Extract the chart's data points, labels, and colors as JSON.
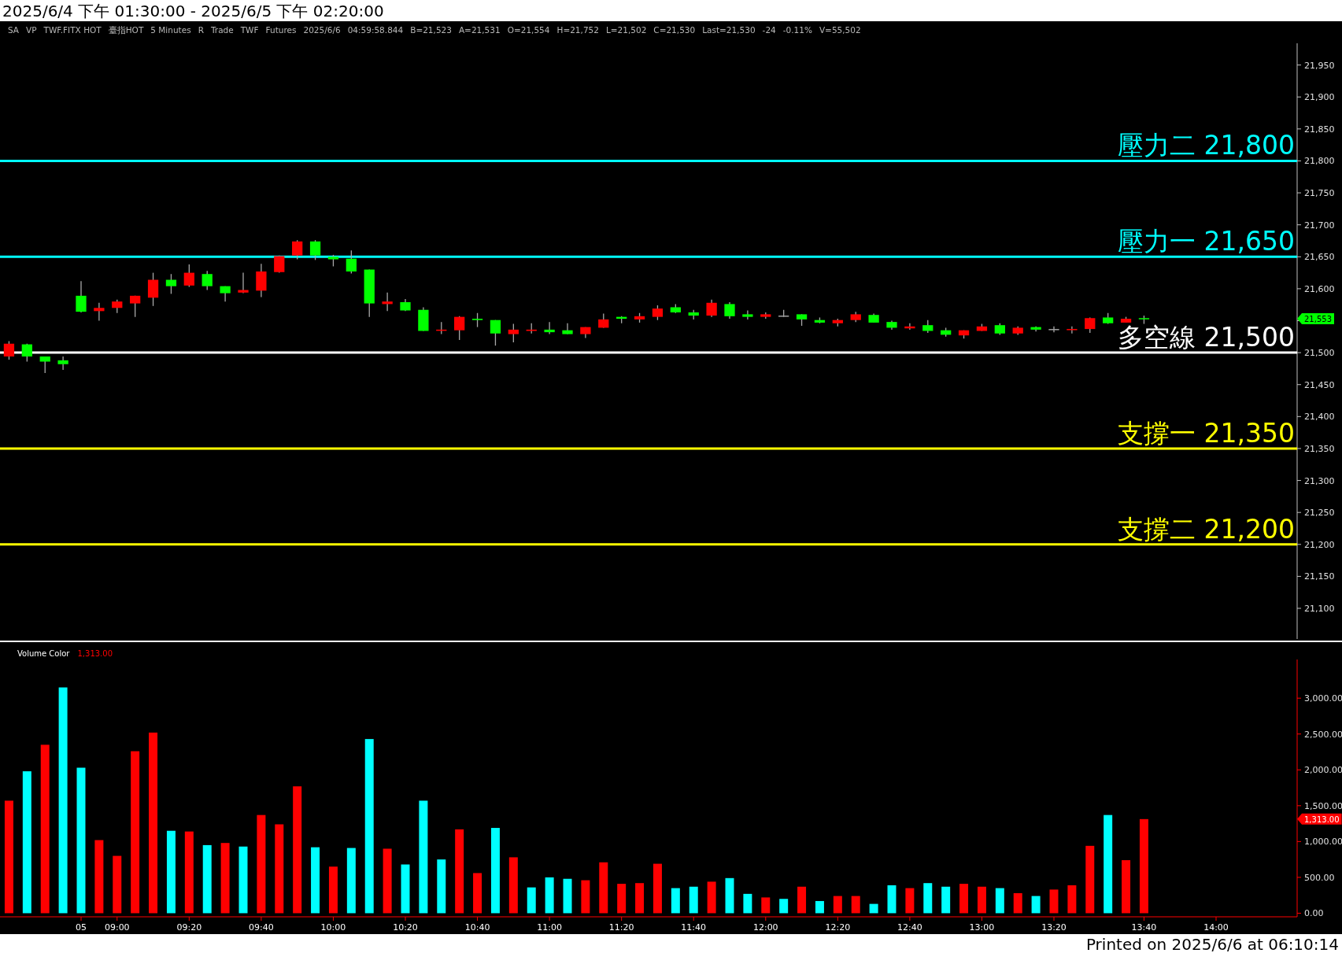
{
  "chart_data": [
    {
      "type": "candlestick",
      "title": "2025/6/4 下午 01:30:00 - 2025/6/5 下午 02:20:00",
      "annotations": [
        "SA",
        "VP",
        "TWF.FITX HOT",
        "臺指HOT",
        "5 Minutes",
        "R",
        "Trade",
        "TWF",
        "Futures",
        "2025/6/6",
        "04:59:58.844",
        "B=21,523",
        "A=21,531",
        "O=21,554",
        "H=21,752",
        "L=21,502",
        "C=21,530",
        "Last=21,530",
        "-24",
        "-0.11%",
        "V=55,502",
        "21,553"
      ],
      "categories": [
        null,
        null,
        null,
        null,
        null,
        null,
        null,
        null,
        null,
        null,
        null,
        null,
        null,
        null,
        null,
        null,
        null,
        null,
        null,
        null,
        null,
        null,
        null,
        null,
        null,
        null,
        null,
        null,
        null,
        null,
        null,
        null,
        null,
        null,
        null,
        null,
        null,
        null,
        null,
        null,
        null,
        null,
        null,
        null,
        null,
        null,
        null,
        null,
        null,
        null,
        null,
        null,
        null,
        null,
        null,
        null,
        null,
        null,
        null,
        null,
        null,
        null,
        null,
        null,
        null,
        null,
        null,
        null,
        null,
        null,
        null,
        null
      ],
      "ohlc": [
        [
          21494,
          21518,
          21489,
          21514
        ],
        [
          21513,
          21514,
          21486,
          21494
        ],
        [
          21494,
          21494,
          21468,
          21486
        ],
        [
          21488,
          21494,
          21473,
          21482
        ],
        [
          21589,
          21612,
          21563,
          21564
        ],
        [
          21565,
          21578,
          21550,
          21570
        ],
        [
          21570,
          21583,
          21562,
          21580
        ],
        [
          21577,
          21589,
          21556,
          21589
        ],
        [
          21586,
          21625,
          21573,
          21614
        ],
        [
          21614,
          21623,
          21592,
          21604
        ],
        [
          21605,
          21638,
          21603,
          21625
        ],
        [
          21623,
          21628,
          21598,
          21604
        ],
        [
          21604,
          21604,
          21580,
          21593
        ],
        [
          21594,
          21625,
          21593,
          21598
        ],
        [
          21597,
          21639,
          21587,
          21627
        ],
        [
          21626,
          21652,
          21625,
          21651
        ],
        [
          21652,
          21676,
          21646,
          21674
        ],
        [
          21674,
          21676,
          21645,
          21652
        ],
        [
          21650,
          21653,
          21635,
          21646
        ],
        [
          21647,
          21660,
          21624,
          21627
        ],
        [
          21630,
          21630,
          21556,
          21577
        ],
        [
          21576,
          21594,
          21565,
          21580
        ],
        [
          21579,
          21584,
          21565,
          21566
        ],
        [
          21567,
          21571,
          21534,
          21534
        ],
        [
          21535,
          21548,
          21529,
          21536
        ],
        [
          21535,
          21557,
          21520,
          21556
        ],
        [
          21553,
          21562,
          21540,
          21551
        ],
        [
          21551,
          21551,
          21511,
          21530
        ],
        [
          21529,
          21545,
          21516,
          21536
        ],
        [
          21534,
          21546,
          21530,
          21536
        ],
        [
          21536,
          21548,
          21529,
          21532
        ],
        [
          21535,
          21546,
          21529,
          21529
        ],
        [
          21529,
          21540,
          21523,
          21540
        ],
        [
          21539,
          21561,
          21539,
          21552
        ],
        [
          21556,
          21557,
          21546,
          21553
        ],
        [
          21552,
          21562,
          21547,
          21557
        ],
        [
          21556,
          21574,
          21551,
          21569
        ],
        [
          21571,
          21576,
          21562,
          21563
        ],
        [
          21563,
          21567,
          21552,
          21558
        ],
        [
          21558,
          21583,
          21556,
          21578
        ],
        [
          21576,
          21579,
          21553,
          21557
        ],
        [
          21560,
          21566,
          21552,
          21556
        ],
        [
          21556,
          21563,
          21553,
          21560
        ],
        [
          21558,
          21567,
          21556,
          21558
        ],
        [
          21560,
          21560,
          21542,
          21552
        ],
        [
          21551,
          21555,
          21546,
          21547
        ],
        [
          21546,
          21553,
          21541,
          21551
        ],
        [
          21551,
          21564,
          21548,
          21560
        ],
        [
          21559,
          21561,
          21547,
          21547
        ],
        [
          21548,
          21550,
          21536,
          21539
        ],
        [
          21538,
          21546,
          21536,
          21541
        ],
        [
          21543,
          21551,
          21531,
          21534
        ],
        [
          21535,
          21539,
          21525,
          21528
        ],
        [
          21527,
          21535,
          21522,
          21535
        ],
        [
          21534,
          21545,
          21534,
          21541
        ],
        [
          21543,
          21546,
          21528,
          21530
        ],
        [
          21530,
          21541,
          21528,
          21539
        ],
        [
          21540,
          21541,
          21533,
          21536
        ],
        [
          21537,
          21541,
          21532,
          21537
        ],
        [
          21536,
          21541,
          21530,
          21537
        ],
        [
          21537,
          21555,
          21531,
          21554
        ],
        [
          21555,
          21562,
          21545,
          21546
        ],
        [
          21547,
          21556,
          21547,
          21553
        ],
        [
          21554,
          21558,
          21545,
          21553
        ],
        null,
        null,
        null,
        null,
        null,
        null,
        null,
        null
      ],
      "colors": [
        "#ff0000",
        "#00ff00",
        "#00ff00",
        "#00ff00",
        "#00ff00",
        "#ff0000",
        "#ff0000",
        "#ff0000",
        "#ff0000",
        "#00ff00",
        "#ff0000",
        "#00ff00",
        "#00ff00",
        "#ff0000",
        "#ff0000",
        "#ff0000",
        "#ff0000",
        "#00ff00",
        "#00ff00",
        "#00ff00",
        "#00ff00",
        "#ff0000",
        "#00ff00",
        "#00ff00",
        "#ff0000",
        "#ff0000",
        "#00ff00",
        "#00ff00",
        "#ff0000",
        "#ff0000",
        "#00ff00",
        "#00ff00",
        "#ff0000",
        "#ff0000",
        "#00ff00",
        "#ff0000",
        "#ff0000",
        "#00ff00",
        "#00ff00",
        "#ff0000",
        "#00ff00",
        "#00ff00",
        "#ff0000",
        "#a0a0a0",
        "#00ff00",
        "#00ff00",
        "#ff0000",
        "#ff0000",
        "#00ff00",
        "#00ff00",
        "#ff0000",
        "#00ff00",
        "#00ff00",
        "#ff0000",
        "#ff0000",
        "#00ff00",
        "#ff0000",
        "#00ff00",
        "#a0a0a0",
        "#ff0000",
        "#ff0000",
        "#00ff00",
        "#ff0000",
        "#00ff00",
        null,
        null,
        null,
        null,
        null,
        null,
        null,
        null
      ],
      "ylim": [
        21052,
        21984
      ],
      "yticks": [
        {
          "value": 21100,
          "label": "21,100"
        },
        {
          "value": 21150,
          "label": "21,150"
        },
        {
          "value": 21200,
          "label": "21,200"
        },
        {
          "value": 21250,
          "label": "21,250"
        },
        {
          "value": 21300,
          "label": "21,300"
        },
        {
          "value": 21350,
          "label": "21,350"
        },
        {
          "value": 21400,
          "label": "21,400"
        },
        {
          "value": 21450,
          "label": "21,450"
        },
        {
          "value": 21500,
          "label": "21,500"
        },
        {
          "value": 21550,
          "label": null
        },
        {
          "value": 21600,
          "label": "21,600"
        },
        {
          "value": 21650,
          "label": "21,650"
        },
        {
          "value": 21700,
          "label": "21,700"
        },
        {
          "value": 21750,
          "label": "21,750"
        },
        {
          "value": 21800,
          "label": "21,800"
        },
        {
          "value": 21850,
          "label": "21,850"
        },
        {
          "value": 21900,
          "label": "21,900"
        },
        {
          "value": 21950,
          "label": "21,950"
        }
      ],
      "ref_lines": [
        {
          "axis": "y",
          "value": 21800,
          "label": "壓力二 21,800",
          "color": "#00ffff"
        },
        {
          "axis": "y",
          "value": 21650,
          "label": "壓力一 21,650",
          "color": "#00ffff"
        },
        {
          "axis": "y",
          "value": 21500,
          "label": "多空線 21,500",
          "color": "#ffffff"
        },
        {
          "axis": "y",
          "value": 21350,
          "label": "支撐一 21,350",
          "color": "#ffff00"
        },
        {
          "axis": "y",
          "value": 21200,
          "label": "支撐二 21,200",
          "color": "#ffff00"
        }
      ],
      "tick_labels": "y"
    },
    {
      "type": "bar",
      "title": "Volume Color",
      "annotations": [
        "1,313.00",
        "1,313.00",
        "Printed on 2025/6/6 at 06:10:14"
      ],
      "categories": [
        null,
        null,
        null,
        null,
        "05",
        null,
        "09:00",
        null,
        null,
        null,
        "09:20",
        null,
        null,
        null,
        "09:40",
        null,
        null,
        null,
        "10:00",
        null,
        null,
        null,
        "10:20",
        null,
        null,
        null,
        "10:40",
        null,
        null,
        null,
        "11:00",
        null,
        null,
        null,
        "11:20",
        null,
        null,
        null,
        "11:40",
        null,
        null,
        null,
        "12:00",
        null,
        null,
        null,
        "12:20",
        null,
        null,
        null,
        "12:40",
        null,
        null,
        null,
        "13:00",
        null,
        null,
        null,
        "13:20",
        null,
        null,
        null,
        null,
        "13:40",
        null,
        null,
        null,
        "14:00",
        null,
        null,
        null,
        null
      ],
      "values": [
        1570,
        1980,
        2350,
        3150,
        2030,
        1020,
        800,
        2260,
        2520,
        1150,
        1140,
        950,
        980,
        930,
        1370,
        1240,
        1770,
        920,
        650,
        910,
        2430,
        900,
        680,
        1570,
        750,
        1170,
        560,
        1190,
        780,
        360,
        500,
        480,
        460,
        710,
        410,
        420,
        690,
        350,
        370,
        440,
        490,
        270,
        220,
        200,
        370,
        170,
        240,
        240,
        130,
        390,
        350,
        420,
        370,
        410,
        370,
        350,
        280,
        240,
        330,
        390,
        940,
        1370,
        740,
        1313,
        null,
        null,
        null,
        null,
        null,
        null,
        null,
        null
      ],
      "colors": [
        "#ff0000",
        "#00ffff",
        "#ff0000",
        "#00ffff",
        "#00ffff",
        "#ff0000",
        "#ff0000",
        "#ff0000",
        "#ff0000",
        "#00ffff",
        "#ff0000",
        "#00ffff",
        "#ff0000",
        "#00ffff",
        "#ff0000",
        "#ff0000",
        "#ff0000",
        "#00ffff",
        "#ff0000",
        "#00ffff",
        "#00ffff",
        "#ff0000",
        "#00ffff",
        "#00ffff",
        "#00ffff",
        "#ff0000",
        "#ff0000",
        "#00ffff",
        "#ff0000",
        "#00ffff",
        "#00ffff",
        "#00ffff",
        "#ff0000",
        "#ff0000",
        "#ff0000",
        "#ff0000",
        "#ff0000",
        "#00ffff",
        "#00ffff",
        "#ff0000",
        "#00ffff",
        "#00ffff",
        "#ff0000",
        "#00ffff",
        "#ff0000",
        "#00ffff",
        "#ff0000",
        "#ff0000",
        "#00ffff",
        "#00ffff",
        "#ff0000",
        "#00ffff",
        "#00ffff",
        "#ff0000",
        "#ff0000",
        "#00ffff",
        "#ff0000",
        "#00ffff",
        "#ff0000",
        "#ff0000",
        "#ff0000",
        "#00ffff",
        "#ff0000",
        "#ff0000",
        null,
        null,
        null,
        null,
        null,
        null,
        null,
        null
      ],
      "ylim": [
        -50,
        3540
      ],
      "yticks": [
        {
          "value": 0,
          "label": "0.00"
        },
        {
          "value": 500,
          "label": "500.00"
        },
        {
          "value": 1000,
          "label": "1,000.00"
        },
        {
          "value": 1500,
          "label": "1,500.00"
        },
        {
          "value": 2000,
          "label": "2,000.00"
        },
        {
          "value": 2500,
          "label": "2,500.00"
        },
        {
          "value": 3000,
          "label": "3,000.00"
        }
      ]
    }
  ]
}
